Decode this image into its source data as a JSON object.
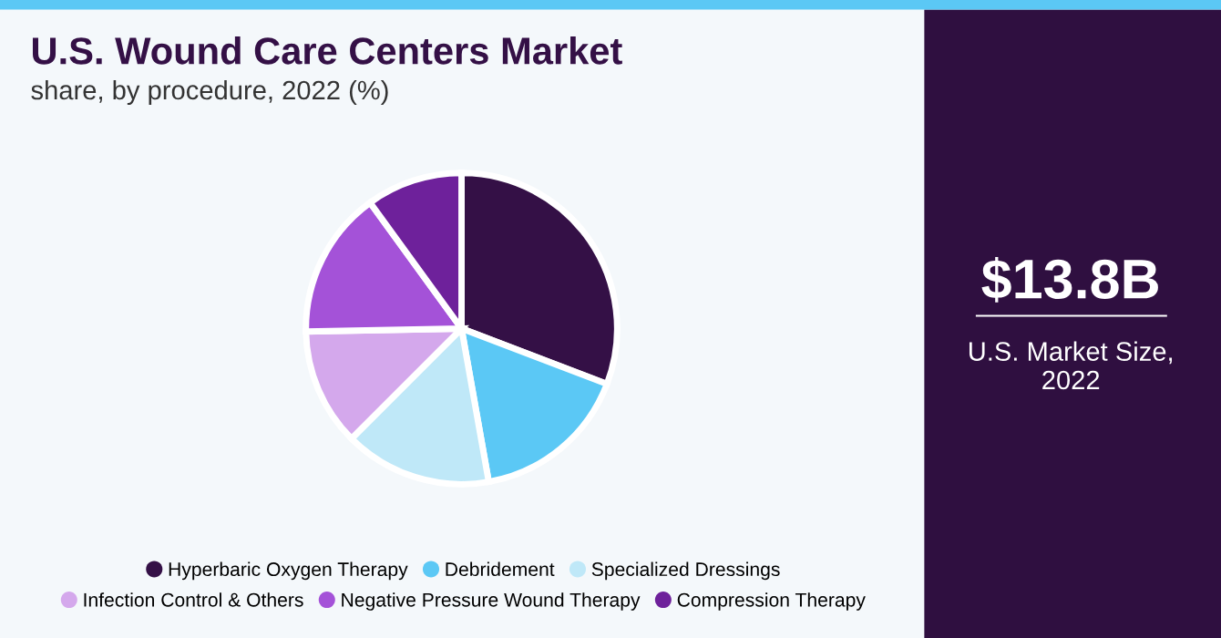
{
  "chart_data": {
    "type": "pie",
    "title": "U.S. Wound Care Centers Market",
    "subtitle": "share, by procedure, 2022 (%)",
    "categories": [
      "Hyperbaric Oxygen Therapy",
      "Debridement",
      "Specialized Dressings",
      "Infection Control & Others",
      "Negative Pressure Wound Therapy",
      "Compression Therapy"
    ],
    "values": [
      30.8,
      16.4,
      15.3,
      12.2,
      15.3,
      10.0
    ],
    "colors": [
      "#341046",
      "#5bc8f5",
      "#bfe8f8",
      "#d4a8ec",
      "#a452d8",
      "#6e219b"
    ],
    "legend": "bottom",
    "annotations": [
      "$13.8B",
      "U.S. Market Size,\n2022"
    ]
  }
}
